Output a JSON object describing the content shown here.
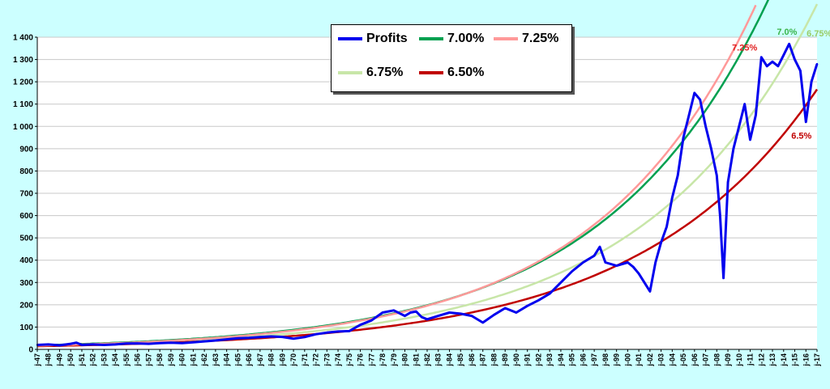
{
  "chart_data": {
    "type": "line",
    "title": "",
    "xlabel": "",
    "ylabel": "",
    "ylim": [
      0,
      1400
    ],
    "y_ticks": [
      "0",
      "100",
      "200",
      "300",
      "400",
      "500",
      "600",
      "700",
      "800",
      "900",
      "1 000",
      "1 100",
      "1 200",
      "1 300",
      "1 400"
    ],
    "x_range": [
      1947,
      2017
    ],
    "x_ticks": [
      "j-47",
      "j-48",
      "j-49",
      "j-50",
      "j-51",
      "j-52",
      "j-53",
      "j-54",
      "j-55",
      "j-56",
      "j-57",
      "j-58",
      "j-59",
      "j-60",
      "j-61",
      "j-62",
      "j-63",
      "j-64",
      "j-65",
      "j-66",
      "j-67",
      "j-68",
      "j-69",
      "j-70",
      "j-71",
      "j-72",
      "j-73",
      "j-74",
      "j-75",
      "j-76",
      "j-77",
      "j-78",
      "j-79",
      "j-80",
      "j-81",
      "j-82",
      "j-83",
      "j-84",
      "j-85",
      "j-86",
      "j-87",
      "j-88",
      "j-89",
      "j-90",
      "j-91",
      "j-92",
      "j-93",
      "j-94",
      "j-95",
      "j-96",
      "j-97",
      "j-98",
      "j-99",
      "j-00",
      "j-01",
      "j-02",
      "j-03",
      "j-04",
      "j-05",
      "j-06",
      "j-07",
      "j-08",
      "j-09",
      "j-10",
      "j-11",
      "j-12",
      "j-13",
      "j-14",
      "j-15",
      "j-16",
      "j-17"
    ],
    "grid": "horizontal",
    "legend_position": "top-center",
    "series": [
      {
        "name": "Profits",
        "color": "#0000ee",
        "x": [
          1947,
          1948,
          1949,
          1950,
          1950.5,
          1951,
          1952,
          1953,
          1954,
          1955,
          1956,
          1957,
          1958,
          1959,
          1960,
          1961,
          1962,
          1963,
          1964,
          1965,
          1966,
          1967,
          1968,
          1969,
          1970,
          1971,
          1972,
          1973,
          1974,
          1975,
          1976,
          1977,
          1978,
          1979,
          1980,
          1980.5,
          1981,
          1981.5,
          1982,
          1983,
          1984,
          1985,
          1986,
          1987,
          1988,
          1989,
          1990,
          1991,
          1992,
          1993,
          1994,
          1995,
          1996,
          1997,
          1997.5,
          1998,
          1999,
          2000,
          2000.5,
          2001,
          2001.5,
          2002,
          2002.5,
          2003,
          2003.5,
          2004,
          2004.5,
          2005,
          2005.5,
          2006,
          2006.5,
          2007,
          2007.5,
          2008,
          2008.3,
          2008.6,
          2009,
          2009.5,
          2010,
          2010.5,
          2011,
          2011.5,
          2012,
          2012.5,
          2013,
          2013.5,
          2014,
          2014.5,
          2015,
          2015.5,
          2016,
          2016.5,
          2017
        ],
        "values": [
          20,
          22,
          18,
          25,
          30,
          20,
          22,
          20,
          22,
          26,
          27,
          25,
          28,
          30,
          28,
          32,
          36,
          40,
          45,
          50,
          52,
          55,
          58,
          56,
          48,
          55,
          68,
          75,
          80,
          82,
          110,
          130,
          165,
          175,
          150,
          165,
          170,
          145,
          135,
          150,
          165,
          160,
          150,
          120,
          155,
          185,
          165,
          195,
          220,
          250,
          300,
          350,
          390,
          420,
          460,
          390,
          375,
          390,
          370,
          340,
          300,
          260,
          390,
          480,
          550,
          680,
          780,
          950,
          1050,
          1150,
          1120,
          1000,
          900,
          780,
          600,
          320,
          750,
          900,
          1000,
          1100,
          940,
          1050,
          1310,
          1270,
          1290,
          1270,
          1320,
          1370,
          1300,
          1250,
          1020,
          1200,
          1280
        ]
      },
      {
        "name": "7.00%",
        "color": "#00a050",
        "rate": 0.07,
        "x0": 1947,
        "y0": 18.5,
        "x_end": 2014.5
      },
      {
        "name": "7.25%",
        "color": "#ff9999",
        "rate": 0.0725,
        "x0": 1947,
        "y0": 16.9,
        "x_end": 2011.5
      },
      {
        "name": "6.75%",
        "color": "#c8e6a8",
        "rate": 0.0675,
        "x0": 1947,
        "y0": 16.0,
        "x_end": 2017
      },
      {
        "name": "6.50%",
        "color": "#c00000",
        "rate": 0.065,
        "x0": 1947,
        "y0": 14.2,
        "x_end": 2017
      }
    ],
    "annotations": [
      {
        "text": "7.0%",
        "color": "#3ab44a",
        "x": 2014.3,
        "y": 1410
      },
      {
        "text": "6.75%",
        "color": "#99cc66",
        "x": 2017.2,
        "y": 1403
      },
      {
        "text": "7.25%",
        "color": "#e02020",
        "x": 2010.5,
        "y": 1340
      },
      {
        "text": "6.5%",
        "color": "#c00000",
        "x": 2015.6,
        "y": 945
      }
    ]
  }
}
